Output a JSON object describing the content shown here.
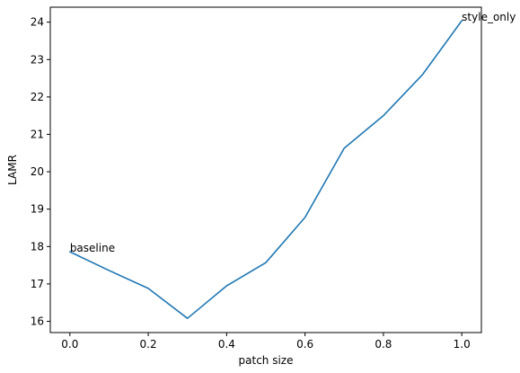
{
  "chart_data": {
    "type": "line",
    "title": "",
    "xlabel": "patch size",
    "ylabel": "LAMR",
    "xlim": [
      -0.05,
      1.05
    ],
    "ylim": [
      15.7,
      24.4
    ],
    "grid": false,
    "x_ticks": [
      0.0,
      0.2,
      0.4,
      0.6,
      0.8,
      1.0
    ],
    "x_tick_labels": [
      "0.0",
      "0.2",
      "0.4",
      "0.6",
      "0.8",
      "1.0"
    ],
    "y_ticks": [
      16,
      17,
      18,
      19,
      20,
      21,
      22,
      23,
      24
    ],
    "y_tick_labels": [
      "16",
      "17",
      "18",
      "19",
      "20",
      "21",
      "22",
      "23",
      "24"
    ],
    "series": [
      {
        "x": [
          0.0,
          0.1,
          0.2,
          0.3,
          0.4,
          0.5,
          0.6,
          0.7,
          0.8,
          0.9,
          1.0
        ],
        "y": [
          17.86,
          17.36,
          16.88,
          16.08,
          16.95,
          17.57,
          18.78,
          20.63,
          21.5,
          22.6,
          24.04
        ],
        "color": "#1f77b4"
      }
    ],
    "annotations": [
      {
        "text": "baseline",
        "x": 0.0,
        "y": 17.86
      },
      {
        "text": "style_only",
        "x": 1.0,
        "y": 24.04
      }
    ]
  }
}
